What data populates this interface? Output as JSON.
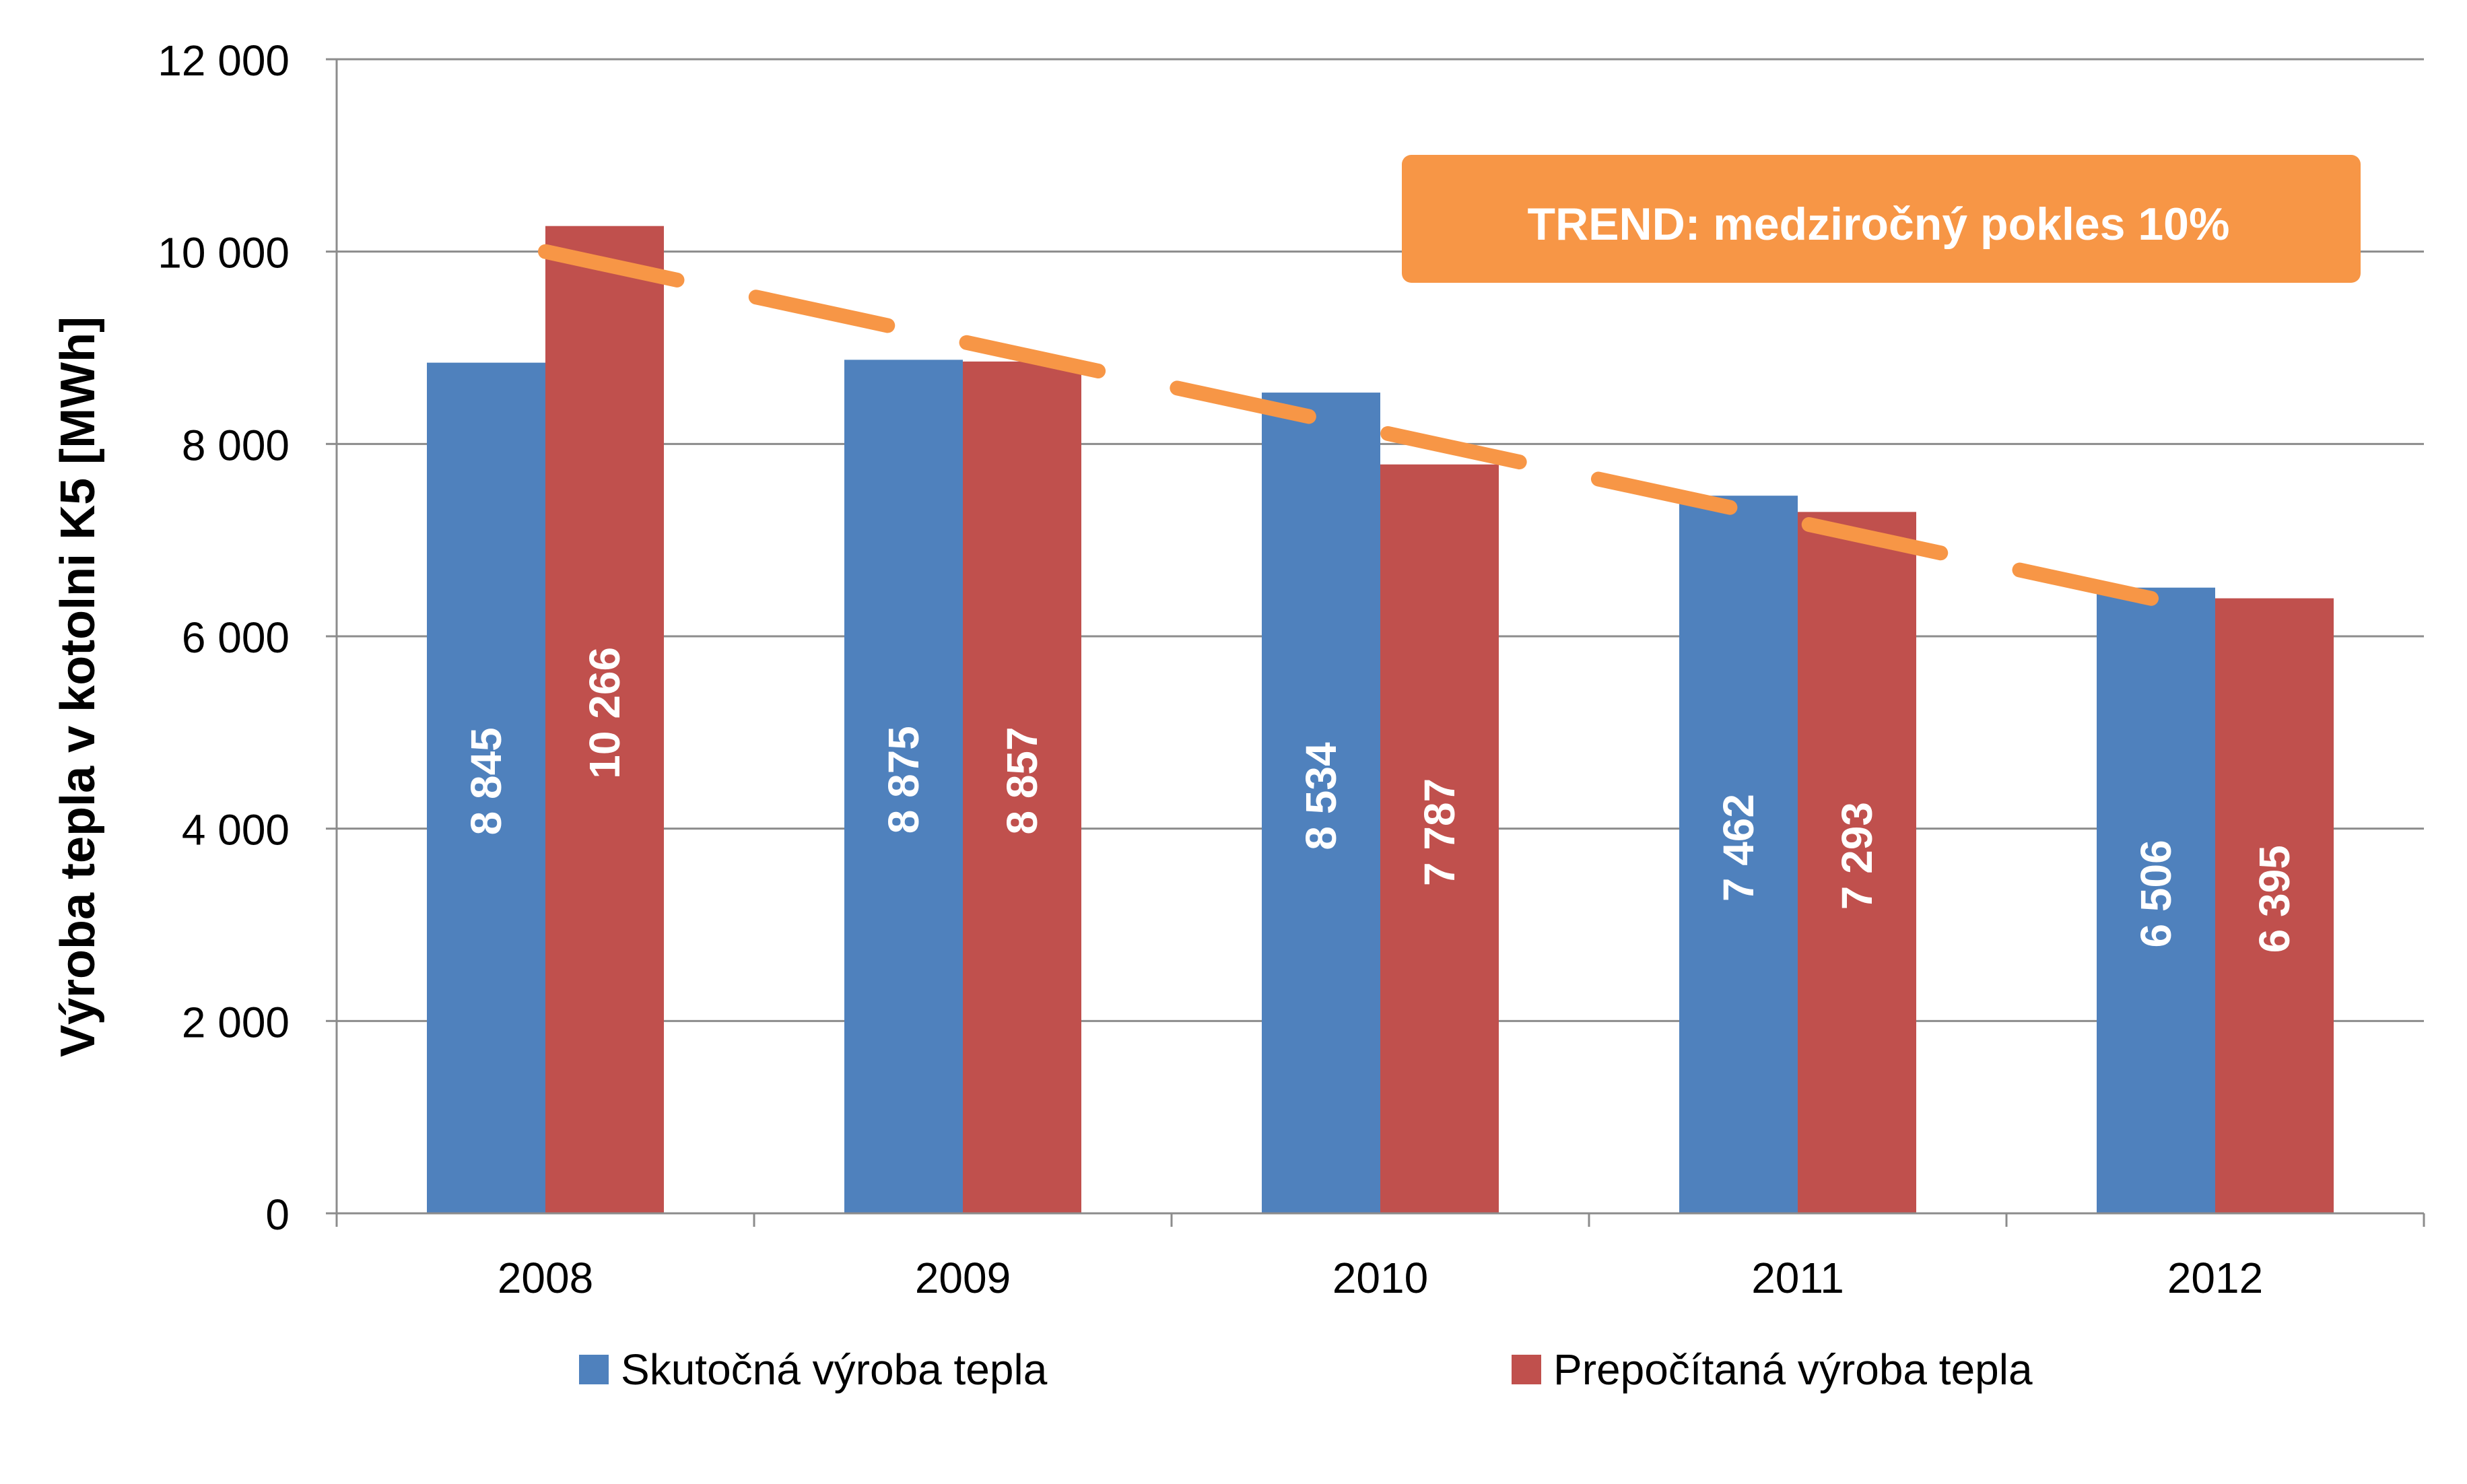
{
  "chart_data": {
    "type": "bar",
    "title": "",
    "xlabel": "",
    "ylabel": "Výroba tepla v kotolni K5 [MWh]",
    "ylim": [
      0,
      12000
    ],
    "yticks": [
      0,
      2000,
      4000,
      6000,
      8000,
      10000,
      12000
    ],
    "ytick_labels": [
      "0",
      "2 000",
      "4 000",
      "6 000",
      "8 000",
      "10 000",
      "12 000"
    ],
    "grid": true,
    "legend_position": "bottom",
    "categories": [
      "2008",
      "2009",
      "2010",
      "2011",
      "2012"
    ],
    "series": [
      {
        "name": "Skutočná výroba tepla",
        "color": "#4F81BD",
        "values": [
          8845,
          8875,
          8534,
          7462,
          6506
        ],
        "labels": [
          "8 845",
          "8 875",
          "8 534",
          "7 462",
          "6 506"
        ]
      },
      {
        "name": "Prepočítaná výroba tepla",
        "color": "#C0504D",
        "values": [
          10266,
          8857,
          7787,
          7293,
          6395
        ],
        "labels": [
          "10 266",
          "8 857",
          "7 787",
          "7 293",
          "6 395"
        ]
      }
    ],
    "trend": {
      "color": "#F79646",
      "start_value": 10000,
      "end_value": 6250
    },
    "annotation": {
      "text": "TREND: medziročný pokles 10%",
      "color": "#F79646"
    }
  }
}
